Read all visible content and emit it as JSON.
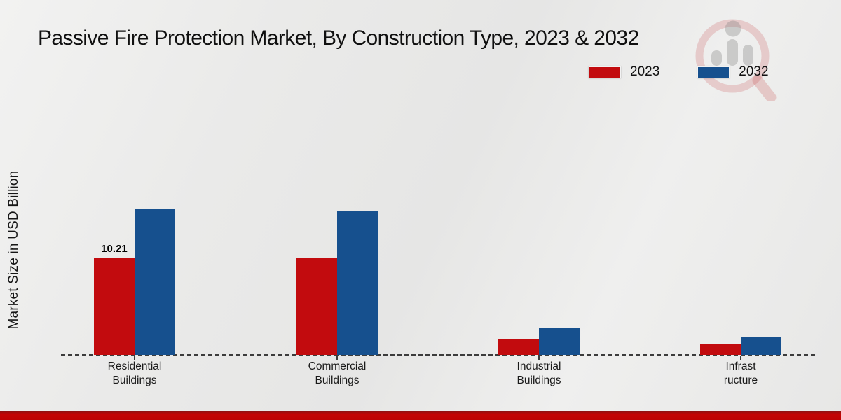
{
  "title": "Passive Fire Protection Market, By Construction Type, 2023 & 2032",
  "ylabel": "Market Size in USD Billion",
  "colors": {
    "series_2023": "#c20b0e",
    "series_2032": "#16508e",
    "baseline": "#3c3c3c",
    "footer_bar": "#c30404"
  },
  "legend": {
    "position": "top-right",
    "items": [
      {
        "label": "2023",
        "color": "#c20b0e"
      },
      {
        "label": "2032",
        "color": "#16508e"
      }
    ]
  },
  "watermark": "magnifier-bar-chart-logo",
  "chart_data": {
    "type": "bar",
    "title": "Passive Fire Protection Market, By Construction Type, 2023 & 2032",
    "xlabel": "",
    "ylabel": "Market Size in USD Billion",
    "grid": false,
    "legend_position": "top-right",
    "categories": [
      "Residential Buildings",
      "Commercial Buildings",
      "Industrial Buildings",
      "Infrastructure"
    ],
    "category_label_lines": [
      [
        "Residential",
        "Buildings"
      ],
      [
        "Commercial",
        "Buildings"
      ],
      [
        "Industrial",
        "Buildings"
      ],
      [
        "Infrast",
        "ructure"
      ]
    ],
    "series": [
      {
        "name": "2023",
        "color": "#c20b0e",
        "values": [
          10.21,
          10.14,
          1.7,
          1.2
        ]
      },
      {
        "name": "2032",
        "color": "#16508e",
        "values": [
          15.35,
          15.13,
          2.8,
          1.8
        ]
      }
    ],
    "data_labels": [
      {
        "series": "2023",
        "category": "Residential Buildings",
        "text": "10.21"
      }
    ],
    "ylim": [
      0,
      17
    ],
    "axis_style": "dashed-baseline-only"
  }
}
